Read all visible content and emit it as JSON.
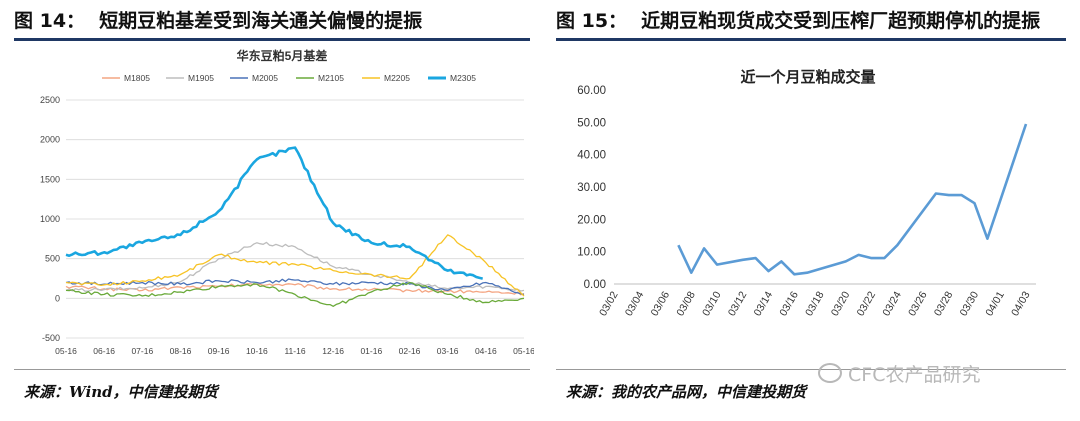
{
  "left": {
    "fig_num": "图 14：",
    "fig_title": "短期豆粕基差受到海关通关偏慢的提振",
    "source": "来源：Wind，中信建投期货"
  },
  "right": {
    "fig_num": "图 15：",
    "fig_title": "近期豆粕现货成交受到压榨厂超预期停机的提振",
    "source": "来源：我的农产品网，中信建投期货"
  },
  "watermark": "CFC农产品研究",
  "colors": {
    "rule": "#1f3864",
    "M1805": "#f4a582",
    "M1905": "#bdbdbd",
    "M2005": "#4a72b8",
    "M2105": "#6aaa3a",
    "M2205": "#f7c325",
    "M2305": "#1aa6e0",
    "volume": "#5b9bd5"
  },
  "chart_data": [
    {
      "type": "line",
      "title": "华东豆粕5月基差",
      "legend_position": "top",
      "grid": true,
      "ylim": [
        -500,
        2500
      ],
      "yticks": [
        "2500",
        "2000",
        "1500",
        "1000",
        "500",
        "0",
        "-500"
      ],
      "categories": [
        "05-16",
        "06-16",
        "07-16",
        "08-16",
        "09-16",
        "10-16",
        "11-16",
        "12-16",
        "01-16",
        "02-16",
        "03-16",
        "04-16",
        "05-16"
      ],
      "series": [
        {
          "name": "M1805",
          "values": [
            150,
            120,
            100,
            140,
            150,
            180,
            170,
            120,
            110,
            100,
            90,
            80,
            60
          ]
        },
        {
          "name": "M1905",
          "values": [
            100,
            110,
            130,
            210,
            500,
            700,
            650,
            400,
            300,
            200,
            120,
            150,
            100
          ]
        },
        {
          "name": "M2005",
          "values": [
            200,
            180,
            200,
            180,
            220,
            200,
            230,
            180,
            200,
            180,
            100,
            200,
            50
          ]
        },
        {
          "name": "M2105",
          "values": [
            100,
            50,
            30,
            80,
            150,
            180,
            50,
            -100,
            80,
            200,
            50,
            -50,
            0
          ]
        },
        {
          "name": "M2205",
          "values": [
            200,
            170,
            220,
            300,
            550,
            450,
            430,
            350,
            300,
            250,
            800,
            450,
            30
          ]
        },
        {
          "name": "M2305",
          "values": [
            550,
            580,
            700,
            800,
            1100,
            1750,
            1900,
            950,
            700,
            650,
            350,
            250,
            null
          ]
        }
      ]
    },
    {
      "type": "line",
      "title": "近一个月豆粕成交量",
      "grid": false,
      "ylim": [
        0,
        60
      ],
      "yticks": [
        "60.00",
        "50.00",
        "40.00",
        "30.00",
        "20.00",
        "10.00",
        "0.00"
      ],
      "categories": [
        "03/02",
        "03/04",
        "03/06",
        "03/08",
        "03/10",
        "03/12",
        "03/14",
        "03/16",
        "03/18",
        "03/20",
        "03/22",
        "03/24",
        "03/26",
        "03/28",
        "03/30",
        "04/01",
        "04/03"
      ],
      "x": [
        "03/07",
        "03/08",
        "03/09",
        "03/10",
        "03/12",
        "03/13",
        "03/14",
        "03/15",
        "03/16",
        "03/17",
        "03/20",
        "03/21",
        "03/22",
        "03/23",
        "03/24",
        "03/27",
        "03/28",
        "03/29",
        "03/30",
        "03/31",
        "04/03"
      ],
      "series": [
        {
          "name": "",
          "values": [
            12.0,
            3.5,
            11.0,
            6.0,
            7.5,
            8.0,
            4.0,
            7.0,
            3.0,
            3.5,
            7.0,
            9.0,
            8.0,
            8.0,
            12.0,
            28.0,
            27.5,
            27.5,
            25.0,
            14.0,
            49.5
          ]
        }
      ]
    }
  ]
}
